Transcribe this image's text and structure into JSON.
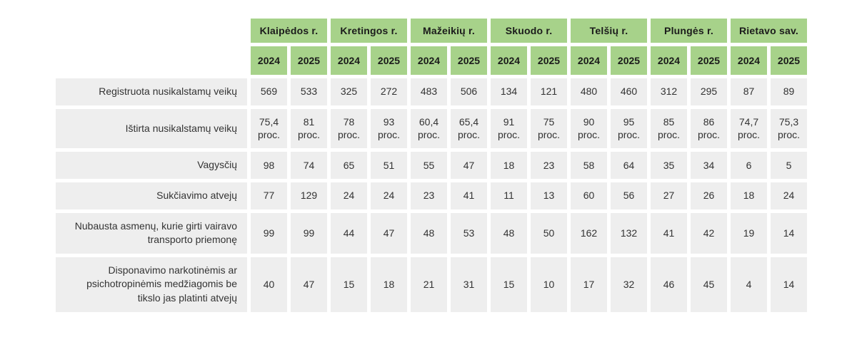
{
  "colors": {
    "header_bg": "#a7d28a",
    "cell_bg": "#eeeeee",
    "text": "#333333"
  },
  "chart_data": {
    "type": "table",
    "column_groups": [
      "Klaipėdos r.",
      "Kretingos r.",
      "Mažeikių r.",
      "Skuodo r.",
      "Telšių r.",
      "Plungės r.",
      "Rietavo sav."
    ],
    "sub_columns": [
      "2024",
      "2025"
    ],
    "rows": [
      {
        "label": "Registruota nusikalstamų veikų",
        "values": [
          "569",
          "533",
          "325",
          "272",
          "483",
          "506",
          "134",
          "121",
          "480",
          "460",
          "312",
          "295",
          "87",
          "89"
        ]
      },
      {
        "label": "Ištirta nusikalstamų veikų",
        "values": [
          "75,4 proc.",
          "81 proc.",
          "78 proc.",
          "93 proc.",
          "60,4 proc.",
          "65,4 proc.",
          "91 proc.",
          "75 proc.",
          "90 proc.",
          "95 proc.",
          "85 proc.",
          "86 proc.",
          "74,7 proc.",
          "75,3 proc."
        ]
      },
      {
        "label": "Vagysčių",
        "values": [
          "98",
          "74",
          "65",
          "51",
          "55",
          "47",
          "18",
          "23",
          "58",
          "64",
          "35",
          "34",
          "6",
          "5"
        ]
      },
      {
        "label": "Sukčiavimo atvejų",
        "values": [
          "77",
          "129",
          "24",
          "24",
          "23",
          "41",
          "11",
          "13",
          "60",
          "56",
          "27",
          "26",
          "18",
          "24"
        ]
      },
      {
        "label": "Nubausta asmenų, kurie girti vairavo transporto priemonę",
        "values": [
          "99",
          "99",
          "44",
          "47",
          "48",
          "53",
          "48",
          "50",
          "162",
          "132",
          "41",
          "42",
          "19",
          "14"
        ]
      },
      {
        "label": "Disponavimo narkotinėmis ar psichotropinėmis medžiagomis be tikslo jas platinti atvejų",
        "values": [
          "40",
          "47",
          "15",
          "18",
          "21",
          "31",
          "15",
          "10",
          "17",
          "32",
          "46",
          "45",
          "4",
          "14"
        ]
      }
    ]
  }
}
